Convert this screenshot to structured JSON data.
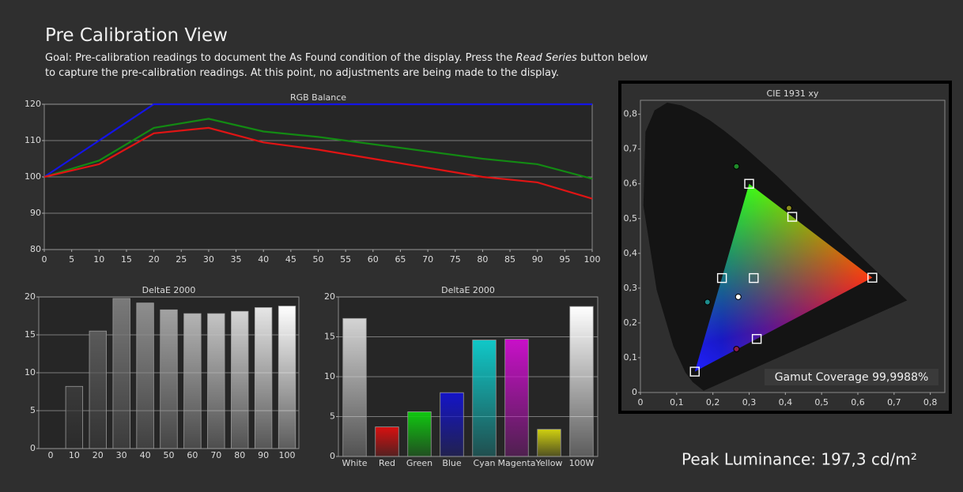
{
  "header": {
    "title": "Pre Calibration View",
    "goal": [
      "Goal: Pre-calibration readings to document the As Found condition of the display. Press the ",
      "Read Series",
      " button below to capture the pre-calibration readings. At this point, no adjustments are being made to the display."
    ]
  },
  "footer": {
    "peak_luminance": "Peak Luminance: 197,3 cd/m²"
  },
  "chart_data": [
    {
      "type": "line",
      "title": "RGB Balance",
      "x": [
        0,
        10,
        20,
        30,
        40,
        50,
        60,
        70,
        80,
        90,
        100
      ],
      "xlim": [
        0,
        100
      ],
      "xticks": [
        0,
        5,
        10,
        15,
        20,
        25,
        30,
        35,
        40,
        45,
        50,
        55,
        60,
        65,
        70,
        75,
        80,
        85,
        90,
        95,
        100
      ],
      "ylim": [
        80,
        120
      ],
      "yticks": [
        80,
        90,
        100,
        110,
        120
      ],
      "grid": true,
      "series": [
        {
          "color": "#1414e6",
          "values": [
            100,
            110,
            120,
            120,
            120,
            120,
            120,
            120,
            120,
            120,
            120
          ]
        },
        {
          "color": "#138a13",
          "values": [
            100,
            104.5,
            113.5,
            116,
            112.5,
            111,
            109,
            107,
            105,
            103.5,
            99.5
          ]
        },
        {
          "color": "#e01414",
          "values": [
            100,
            103.5,
            112,
            113.5,
            109.5,
            107.5,
            105,
            102.5,
            100,
            98.5,
            94
          ]
        }
      ]
    },
    {
      "type": "bar",
      "title": "DeltaE 2000",
      "categories": [
        "0",
        "10",
        "20",
        "30",
        "40",
        "50",
        "60",
        "70",
        "80",
        "90",
        "100"
      ],
      "values": [
        0,
        8.2,
        15.5,
        19.8,
        19.2,
        18.3,
        17.8,
        17.8,
        18.1,
        18.6,
        18.8
      ],
      "colors": [
        "#000000",
        "#3a3a3a",
        "#5a5a5a",
        "#7a7a7a",
        "#8e8e8e",
        "#a2a2a2",
        "#b4b4b4",
        "#c4c4c4",
        "#d4d4d4",
        "#e6e6e6",
        "#ffffff"
      ],
      "ylim": [
        0,
        20
      ],
      "yticks": [
        0,
        5,
        10,
        15,
        20
      ],
      "grid": true
    },
    {
      "type": "bar",
      "title": "DeltaE 2000",
      "categories": [
        "White",
        "Red",
        "Green",
        "Blue",
        "Cyan",
        "Magenta",
        "Yellow",
        "100W"
      ],
      "values": [
        17.3,
        3.7,
        5.6,
        8.0,
        14.6,
        14.7,
        3.4,
        18.8
      ],
      "colors": [
        "#d4d4d4",
        "#d81010",
        "#10c810",
        "#1414c8",
        "#10c8c8",
        "#c810c8",
        "#d0d010",
        "#ffffff"
      ],
      "ylim": [
        0,
        20
      ],
      "yticks": [
        0,
        5,
        10,
        15,
        20
      ],
      "grid": true
    },
    {
      "type": "scatter",
      "title": "CIE 1931 xy",
      "annotation": "Gamut Coverage 99,9988%",
      "xlim": [
        0,
        0.84
      ],
      "xticks": [
        0,
        {
          "value": 0.1,
          "label": "0,1"
        },
        {
          "value": 0.2,
          "label": "0,2"
        },
        {
          "value": 0.3,
          "label": "0,3"
        },
        {
          "value": 0.4,
          "label": "0,4"
        },
        {
          "value": 0.5,
          "label": "0,5"
        },
        {
          "value": 0.6,
          "label": "0,6"
        },
        {
          "value": 0.7,
          "label": "0,7"
        },
        {
          "value": 0.8,
          "label": "0,8"
        }
      ],
      "ylim": [
        0,
        0.84
      ],
      "yticks": [
        0,
        {
          "value": 0.1,
          "label": "0,1"
        },
        {
          "value": 0.2,
          "label": "0,2"
        },
        {
          "value": 0.3,
          "label": "0,3"
        },
        {
          "value": 0.4,
          "label": "0,4"
        },
        {
          "value": 0.5,
          "label": "0,5"
        },
        {
          "value": 0.6,
          "label": "0,6"
        },
        {
          "value": 0.7,
          "label": "0,7"
        },
        {
          "value": 0.8,
          "label": "0,8"
        }
      ],
      "grid": false,
      "series": [
        {
          "marker": "square",
          "color": "#ffffff",
          "x": [
            0.64,
            0.3,
            0.15,
            0.3127,
            0.225,
            0.321,
            0.419
          ],
          "values": [
            0.33,
            0.6,
            0.06,
            0.329,
            0.329,
            0.154,
            0.505
          ]
        },
        {
          "marker": "circle",
          "x": [
            0.265,
            0.41,
            0.27,
            0.185,
            0.265
          ],
          "values": [
            0.65,
            0.53,
            0.275,
            0.26,
            0.125
          ],
          "colors": [
            "#1f8a2a",
            "#8c8c1c",
            "#ffffff",
            "#1d8c8c",
            "#8c1d4a"
          ]
        }
      ]
    }
  ]
}
